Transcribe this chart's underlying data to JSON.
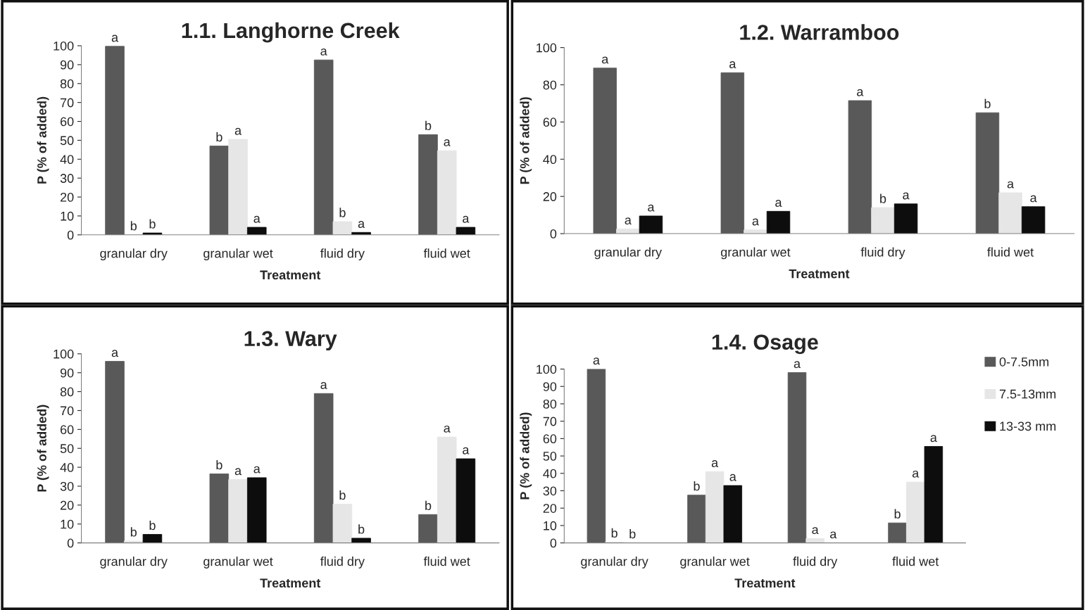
{
  "chart_data": [
    {
      "type": "bar",
      "title": "1.1. Langhorne Creek",
      "xlabel": "Treatment",
      "ylabel": "P (% of added)",
      "categories": [
        "granular dry",
        "granular wet",
        "fluid dry",
        "fluid wet"
      ],
      "ylim": [
        0,
        100
      ],
      "yticks": [
        0,
        10,
        20,
        30,
        40,
        50,
        60,
        70,
        80,
        90,
        100
      ],
      "grid": false,
      "legend": false,
      "series": [
        {
          "color": "#595959",
          "values": [
            99.7,
            47,
            92.5,
            53
          ],
          "value_labels": [
            "a",
            "b",
            "a",
            "b"
          ]
        },
        {
          "color": "#e6e6e6",
          "values": [
            0,
            50.5,
            7,
            44.5
          ],
          "value_labels": [
            "b",
            "a",
            "b",
            "a"
          ]
        },
        {
          "color": "#0d0d0d",
          "values": [
            1,
            4,
            1.3,
            4
          ],
          "value_labels": [
            "b",
            "a",
            "a",
            "a"
          ]
        }
      ]
    },
    {
      "type": "bar",
      "title": "1.2. Warramboo",
      "xlabel": "Treatment",
      "ylabel": "P (% of added)",
      "categories": [
        "granular dry",
        "granular wet",
        "fluid dry",
        "fluid wet"
      ],
      "ylim": [
        0,
        100
      ],
      "yticks": [
        0,
        20,
        40,
        60,
        80,
        100
      ],
      "grid": false,
      "legend": false,
      "series": [
        {
          "color": "#595959",
          "values": [
            89,
            86.5,
            71.5,
            65
          ],
          "value_labels": [
            "a",
            "a",
            "a",
            "b"
          ]
        },
        {
          "color": "#e6e6e6",
          "values": [
            2.5,
            2,
            14,
            22
          ],
          "value_labels": [
            "a",
            "a",
            "b",
            "a"
          ]
        },
        {
          "color": "#0d0d0d",
          "values": [
            9.5,
            12,
            16,
            14.5
          ],
          "value_labels": [
            "a",
            "a",
            "a",
            "a"
          ]
        }
      ]
    },
    {
      "type": "bar",
      "title": "1.3. Wary",
      "xlabel": "Treatment",
      "ylabel": "P (% of added)",
      "categories": [
        "granular dry",
        "granular wet",
        "fluid dry",
        "fluid wet"
      ],
      "ylim": [
        0,
        100
      ],
      "yticks": [
        0,
        10,
        20,
        30,
        40,
        50,
        60,
        70,
        80,
        90,
        100
      ],
      "grid": false,
      "legend": false,
      "series": [
        {
          "color": "#595959",
          "values": [
            96,
            36.5,
            79,
            15
          ],
          "value_labels": [
            "a",
            "b",
            "a",
            "b"
          ]
        },
        {
          "color": "#e6e6e6",
          "values": [
            1,
            33.5,
            20.5,
            56
          ],
          "value_labels": [
            "b",
            "a",
            "b",
            "a"
          ]
        },
        {
          "color": "#0d0d0d",
          "values": [
            4.5,
            34.5,
            2.5,
            44.5
          ],
          "value_labels": [
            "b",
            "a",
            "b",
            "a"
          ]
        }
      ]
    },
    {
      "type": "bar",
      "title": "1.4. Osage",
      "xlabel": "Treatment",
      "ylabel": "P (% of added)",
      "categories": [
        "granular dry",
        "granular wet",
        "fluid dry",
        "fluid wet"
      ],
      "ylim": [
        0,
        100
      ],
      "yticks": [
        0,
        10,
        20,
        30,
        40,
        50,
        60,
        70,
        80,
        90,
        100
      ],
      "grid": false,
      "legend": "right",
      "series": [
        {
          "name": "0-7.5mm",
          "color": "#595959",
          "values": [
            100,
            27.5,
            98,
            11.5
          ],
          "value_labels": [
            "a",
            "b",
            "a",
            "b"
          ]
        },
        {
          "name": "7.5-13mm",
          "color": "#e6e6e6",
          "values": [
            0.5,
            41,
            2.5,
            35
          ],
          "value_labels": [
            "b",
            "a",
            "a",
            "a"
          ]
        },
        {
          "name": "13-33 mm",
          "color": "#0d0d0d",
          "values": [
            0,
            33,
            0,
            55.5
          ],
          "value_labels": [
            "b",
            "a",
            "a",
            "a"
          ]
        }
      ]
    }
  ]
}
